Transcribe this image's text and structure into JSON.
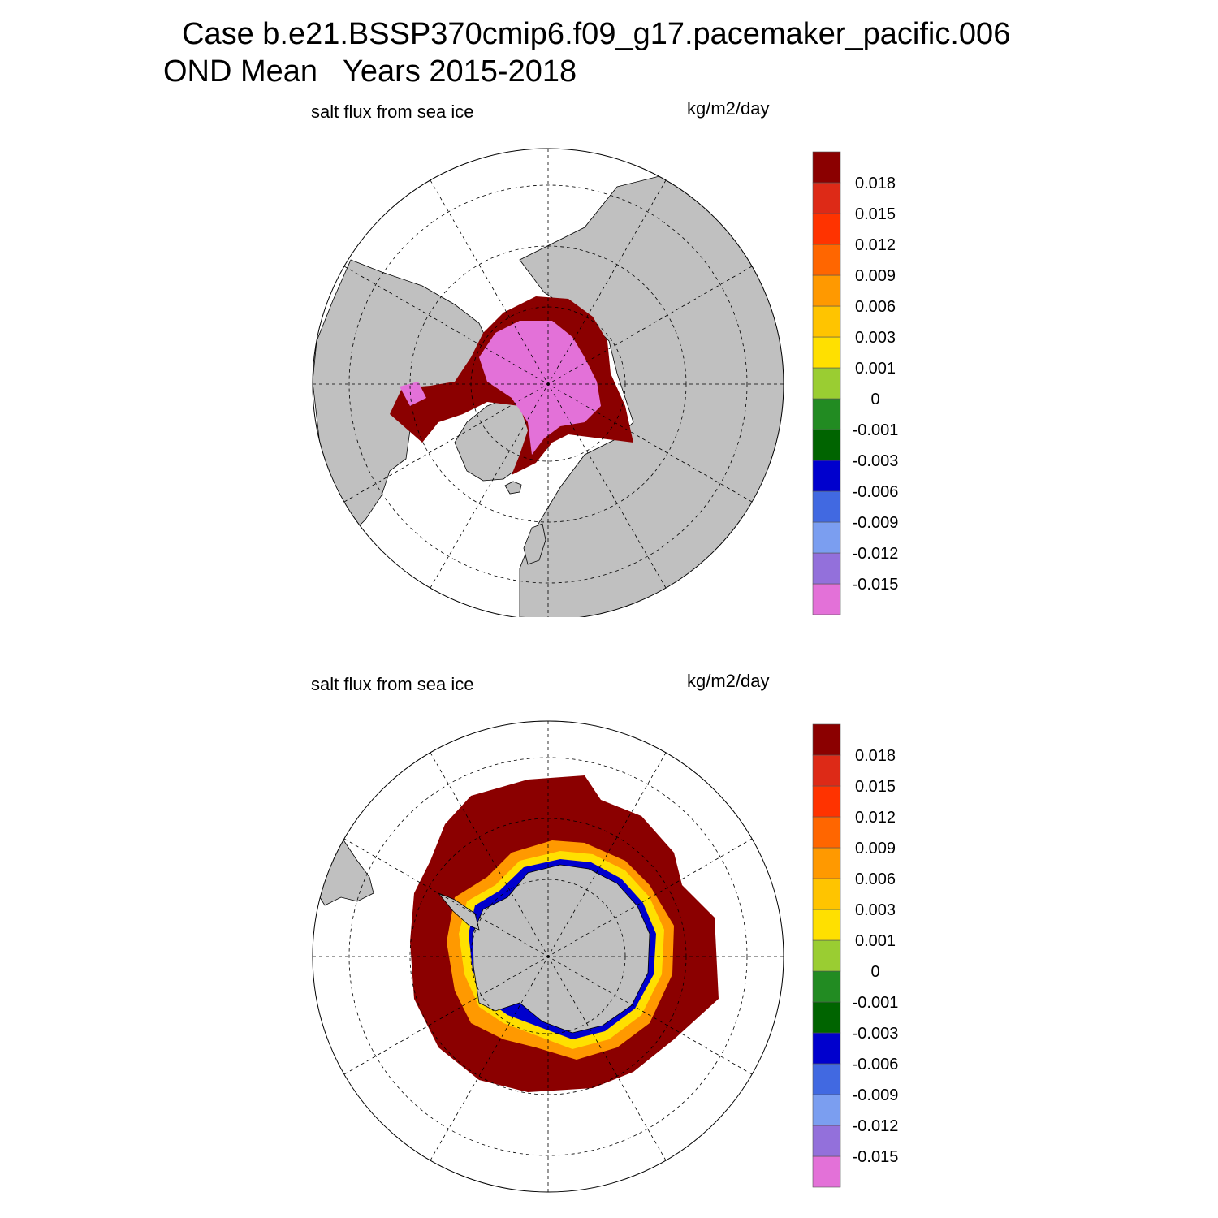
{
  "header": {
    "title_line1": "Case b.e21.BSSP370cmip6.f09_g17.pacemaker_pacific.006",
    "title_line2": "OND Mean   Years 2015-2018"
  },
  "colors": {
    "land": "#c0c0c0",
    "ocean": "#ffffff",
    "ice_pos_high": "#8b0000",
    "ice_neg_low": "#e371d8"
  },
  "colorbar": {
    "colors": [
      "#e371d8",
      "#9370db",
      "#7b9ef0",
      "#4169e1",
      "#0000cd",
      "#006400",
      "#228b22",
      "#9acd32",
      "#ffe000",
      "#ffc400",
      "#ff9900",
      "#ff6600",
      "#ff3300",
      "#dd2a17",
      "#8b0000"
    ],
    "labels": [
      "-0.015",
      "-0.012",
      "-0.009",
      "-0.006",
      "-0.003",
      "-0.001",
      "0",
      "0.001",
      "0.003",
      "0.006",
      "0.009",
      "0.012",
      "0.015",
      "0.018"
    ]
  },
  "panels": [
    {
      "id": "arctic",
      "variable": "salt flux from sea ice",
      "units": "kg/m2/day"
    },
    {
      "id": "antarctic",
      "variable": "salt flux from sea ice",
      "units": "kg/m2/day"
    }
  ]
}
